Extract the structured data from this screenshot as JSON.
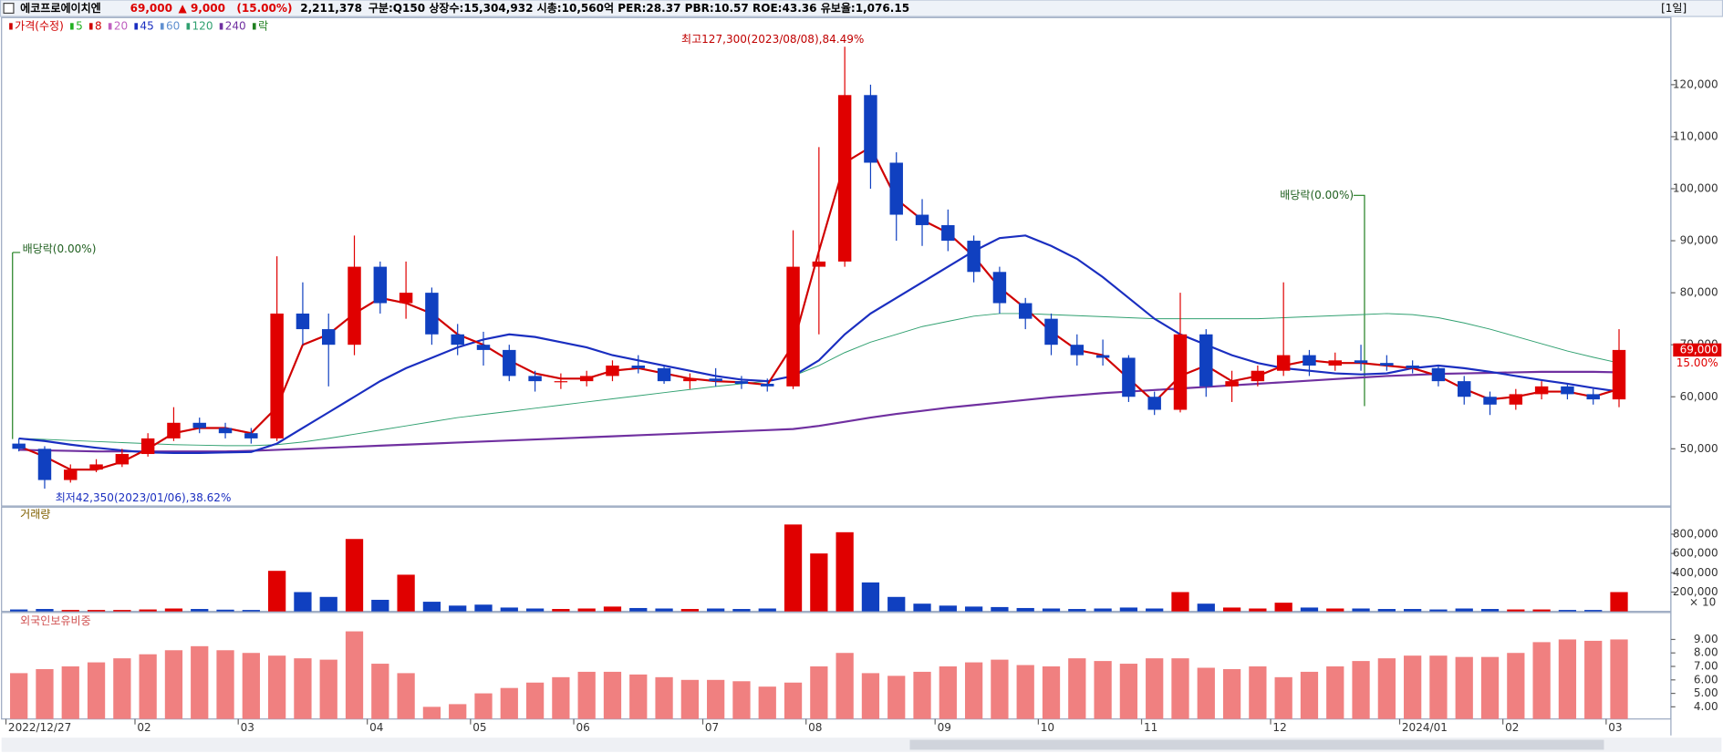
{
  "header": {
    "name": "에코프로에이치엔",
    "price": "69,000",
    "change": "▲ 9,000",
    "change_pct": "(15.00%)",
    "volume": "2,211,378",
    "info": "구분:Q150 상장수:15,304,932 시총:10,560억 PER:28.37 PBR:10.57 ROE:43.36 유보율:1,076.15",
    "period": "[1일]"
  },
  "chart_data": [
    {
      "type": "candlestick",
      "legend": [
        {
          "name": "가격(수정)",
          "color": "#d00000"
        },
        {
          "name": "5",
          "color": "#20b020"
        },
        {
          "name": "8",
          "color": "#d00000"
        },
        {
          "name": "20",
          "color": "#c060c0"
        },
        {
          "name": "45",
          "color": "#1a2ec0"
        },
        {
          "name": "60",
          "color": "#6090d0"
        },
        {
          "name": "120",
          "color": "#30a070"
        },
        {
          "name": "240",
          "color": "#7030a0"
        },
        {
          "name": "락",
          "color": "#208020"
        }
      ],
      "annotations": [
        "최고127,300(2023/08/08),84.49%",
        "최저42,350(2023/01/06),38.62%",
        "배당락(0.00%)",
        "배당락(0.00%)"
      ],
      "last_price_label": "69,000",
      "change_label": "15.00%",
      "categories": [
        "2022/12/27",
        null,
        null,
        null,
        null,
        "02",
        null,
        null,
        null,
        "03",
        null,
        null,
        null,
        null,
        "04",
        null,
        null,
        null,
        "05",
        null,
        null,
        null,
        "06",
        null,
        null,
        null,
        null,
        "07",
        null,
        null,
        null,
        "08",
        null,
        null,
        null,
        null,
        "09",
        null,
        null,
        null,
        "10",
        null,
        null,
        null,
        "11",
        null,
        null,
        null,
        null,
        "12",
        null,
        null,
        null,
        null,
        "2024/01",
        null,
        null,
        null,
        "02",
        null,
        null,
        null,
        "03"
      ],
      "open": [
        51000,
        50000,
        44000,
        46000,
        47000,
        49000,
        52000,
        55000,
        54000,
        53000,
        52000,
        76000,
        73000,
        70000,
        85000,
        78000,
        80000,
        72000,
        70000,
        69000,
        64000,
        63000,
        63000,
        64000,
        66000,
        65500,
        63000,
        63500,
        63000,
        62500,
        62000,
        85000,
        86000,
        118000,
        105000,
        95000,
        93000,
        90000,
        84000,
        78000,
        75000,
        70000,
        68000,
        67500,
        60000,
        57500,
        72000,
        62000,
        63000,
        65000,
        68000,
        66000,
        67000,
        66500,
        66000,
        65500,
        63000,
        60000,
        58500,
        60500,
        62000,
        60500,
        59500
      ],
      "high": [
        52000,
        50500,
        47000,
        48000,
        50000,
        53000,
        58000,
        56000,
        55000,
        54000,
        87000,
        82000,
        76000,
        91000,
        86000,
        86000,
        81000,
        74000,
        72500,
        70000,
        65000,
        64500,
        65000,
        67000,
        68000,
        66000,
        64500,
        65500,
        64000,
        63500,
        92000,
        108000,
        127300,
        120000,
        107000,
        98000,
        96000,
        91000,
        85000,
        79000,
        76000,
        72000,
        71000,
        68000,
        61000,
        80000,
        73000,
        65000,
        66000,
        82000,
        69000,
        68500,
        70000,
        68000,
        67000,
        66000,
        64000,
        61000,
        61500,
        63000,
        62500,
        61500,
        73000
      ],
      "low": [
        49500,
        42350,
        43500,
        45500,
        46500,
        48500,
        51500,
        53000,
        52000,
        51000,
        51500,
        70000,
        62000,
        68000,
        76000,
        75000,
        70000,
        68000,
        66000,
        63000,
        61000,
        61500,
        62000,
        63000,
        64500,
        62500,
        61500,
        62000,
        61500,
        61000,
        61500,
        72000,
        85000,
        100000,
        90000,
        89000,
        88000,
        82000,
        76000,
        73000,
        68000,
        66000,
        66000,
        59000,
        56500,
        57000,
        60000,
        59000,
        62000,
        64000,
        64000,
        65000,
        65000,
        65000,
        64500,
        62000,
        58500,
        56500,
        57500,
        59500,
        59500,
        58500,
        58000
      ],
      "close": [
        50000,
        44000,
        46000,
        47000,
        49000,
        52000,
        55000,
        54000,
        53000,
        52000,
        76000,
        73000,
        70000,
        85000,
        78000,
        80000,
        72000,
        70000,
        69000,
        64000,
        63000,
        63000,
        64000,
        66000,
        65500,
        63000,
        63500,
        63000,
        62500,
        62000,
        85000,
        86000,
        118000,
        105000,
        95000,
        93000,
        90000,
        84000,
        78000,
        75000,
        70000,
        68000,
        67500,
        60000,
        57500,
        72000,
        62000,
        63000,
        65000,
        68000,
        66000,
        67000,
        66500,
        66000,
        65500,
        63000,
        60000,
        58500,
        60500,
        62000,
        60500,
        59500,
        69000
      ],
      "up_color": "#e00000",
      "down_color": "#1040c0",
      "lines": [
        {
          "name": "120",
          "color": "#30a070",
          "width": 0.8,
          "values": [
            52000,
            51800,
            51600,
            51400,
            51200,
            51000,
            50800,
            50700,
            50600,
            50600,
            50800,
            51300,
            52000,
            52800,
            53600,
            54400,
            55200,
            56000,
            56600,
            57200,
            57800,
            58400,
            59000,
            59600,
            60200,
            60800,
            61400,
            62000,
            62500,
            63000,
            64000,
            66000,
            68500,
            70500,
            72000,
            73500,
            74500,
            75500,
            76000,
            76000,
            75800,
            75600,
            75400,
            75200,
            75000,
            75000,
            75000,
            75000,
            75000,
            75200,
            75400,
            75600,
            75800,
            76000,
            75800,
            75200,
            74200,
            73000,
            71600,
            70200,
            68800,
            67600,
            66500
          ]
        },
        {
          "name": "240",
          "color": "#7030a0",
          "width": 1.8,
          "values": [
            49800,
            49700,
            49600,
            49500,
            49500,
            49500,
            49500,
            49500,
            49500,
            49600,
            49800,
            50000,
            50200,
            50400,
            50600,
            50800,
            51000,
            51200,
            51400,
            51600,
            51800,
            52000,
            52200,
            52400,
            52600,
            52800,
            53000,
            53200,
            53400,
            53600,
            53800,
            54400,
            55200,
            56000,
            56700,
            57300,
            57900,
            58400,
            58900,
            59400,
            59900,
            60300,
            60700,
            61000,
            61300,
            61600,
            61900,
            62200,
            62500,
            62800,
            63100,
            63400,
            63700,
            64000,
            64200,
            64400,
            64500,
            64600,
            64700,
            64800,
            64800,
            64800,
            64700
          ]
        },
        {
          "name": "45",
          "color": "#1a2ec0",
          "width": 1.8,
          "values": [
            52000,
            51500,
            50800,
            50200,
            49700,
            49300,
            49200,
            49200,
            49300,
            49400,
            51000,
            54000,
            57000,
            60000,
            63000,
            65500,
            67500,
            69500,
            71000,
            72000,
            71500,
            70500,
            69500,
            68000,
            67000,
            66000,
            65000,
            64000,
            63300,
            63000,
            64000,
            67000,
            72000,
            76000,
            79000,
            82000,
            85000,
            88000,
            90500,
            91000,
            89000,
            86500,
            83000,
            79000,
            75000,
            72000,
            70000,
            68000,
            66500,
            65500,
            65000,
            64500,
            64300,
            64500,
            65500,
            66000,
            65500,
            64800,
            64000,
            63200,
            62500,
            61700,
            61000
          ]
        },
        {
          "name": "8",
          "color": "#d00000",
          "width": 1.8,
          "values": [
            50500,
            48500,
            46000,
            46000,
            47500,
            50000,
            53000,
            54000,
            54000,
            53000,
            58000,
            70000,
            72000,
            76000,
            79000,
            78000,
            76000,
            72000,
            70000,
            67000,
            64500,
            63500,
            63500,
            65000,
            65500,
            64500,
            63500,
            63000,
            62800,
            62300,
            70000,
            88000,
            105000,
            108000,
            98000,
            94000,
            91500,
            87000,
            81000,
            77000,
            72500,
            69000,
            68000,
            63500,
            59000,
            64000,
            66000,
            63000,
            64000,
            66000,
            67000,
            66500,
            66500,
            66000,
            65500,
            64000,
            61500,
            59500,
            60000,
            61000,
            61000,
            60000,
            61500
          ]
        }
      ],
      "ylim": [
        39000,
        132900
      ],
      "yticks": [
        {
          "value": 50000,
          "label": "50,000"
        },
        {
          "value": 60000,
          "label": "60,000"
        },
        {
          "value": 70000,
          "label": "70,000"
        },
        {
          "value": 80000,
          "label": "80,000"
        },
        {
          "value": 90000,
          "label": "90,000"
        },
        {
          "value": 100000,
          "label": "100,000"
        },
        {
          "value": 110000,
          "label": "110,000"
        },
        {
          "value": 120000,
          "label": "120,000"
        }
      ]
    },
    {
      "type": "bar",
      "title": "거래량",
      "unit_label": "× 10",
      "values": [
        20000,
        25000,
        15000,
        15000,
        15000,
        20000,
        30000,
        25000,
        18000,
        15000,
        420000,
        200000,
        150000,
        750000,
        120000,
        380000,
        100000,
        60000,
        70000,
        40000,
        30000,
        25000,
        30000,
        50000,
        35000,
        30000,
        25000,
        30000,
        25000,
        30000,
        900000,
        600000,
        820000,
        300000,
        150000,
        80000,
        60000,
        50000,
        45000,
        35000,
        30000,
        25000,
        30000,
        40000,
        30000,
        200000,
        80000,
        40000,
        30000,
        90000,
        40000,
        30000,
        30000,
        25000,
        25000,
        20000,
        30000,
        25000,
        20000,
        20000,
        15000,
        15000,
        200000
      ],
      "ylim": [
        0,
        1080000
      ],
      "yticks": [
        {
          "value": 200000,
          "label": "200,000"
        },
        {
          "value": 400000,
          "label": "400,000"
        },
        {
          "value": 600000,
          "label": "600,000"
        },
        {
          "value": 800000,
          "label": "800,000"
        }
      ]
    },
    {
      "type": "bar",
      "title": "외국인보유비중",
      "color": "#f08080",
      "values": [
        6.5,
        6.8,
        7.0,
        7.3,
        7.6,
        7.9,
        8.2,
        8.5,
        8.2,
        8.0,
        7.8,
        7.6,
        7.5,
        9.6,
        7.2,
        6.5,
        4.0,
        4.2,
        5.0,
        5.4,
        5.8,
        6.2,
        6.6,
        6.6,
        6.4,
        6.2,
        6.0,
        6.0,
        5.9,
        5.5,
        5.8,
        7.0,
        8.0,
        6.5,
        6.3,
        6.6,
        7.0,
        7.3,
        7.5,
        7.1,
        7.0,
        7.6,
        7.4,
        7.2,
        7.6,
        7.6,
        6.9,
        6.8,
        7.0,
        6.2,
        6.6,
        7.0,
        7.4,
        7.6,
        7.8,
        7.8,
        7.7,
        7.7,
        8.0,
        8.8,
        9.0,
        8.9,
        9.0
      ],
      "ylim": [
        3.1,
        11
      ],
      "yticks": [
        {
          "value": 4,
          "label": "4.00"
        },
        {
          "value": 5,
          "label": "5.00"
        },
        {
          "value": 6,
          "label": "6.00"
        },
        {
          "value": 7,
          "label": "7.00"
        },
        {
          "value": 8,
          "label": "8.00"
        },
        {
          "value": 9,
          "label": "9.00"
        }
      ]
    }
  ]
}
